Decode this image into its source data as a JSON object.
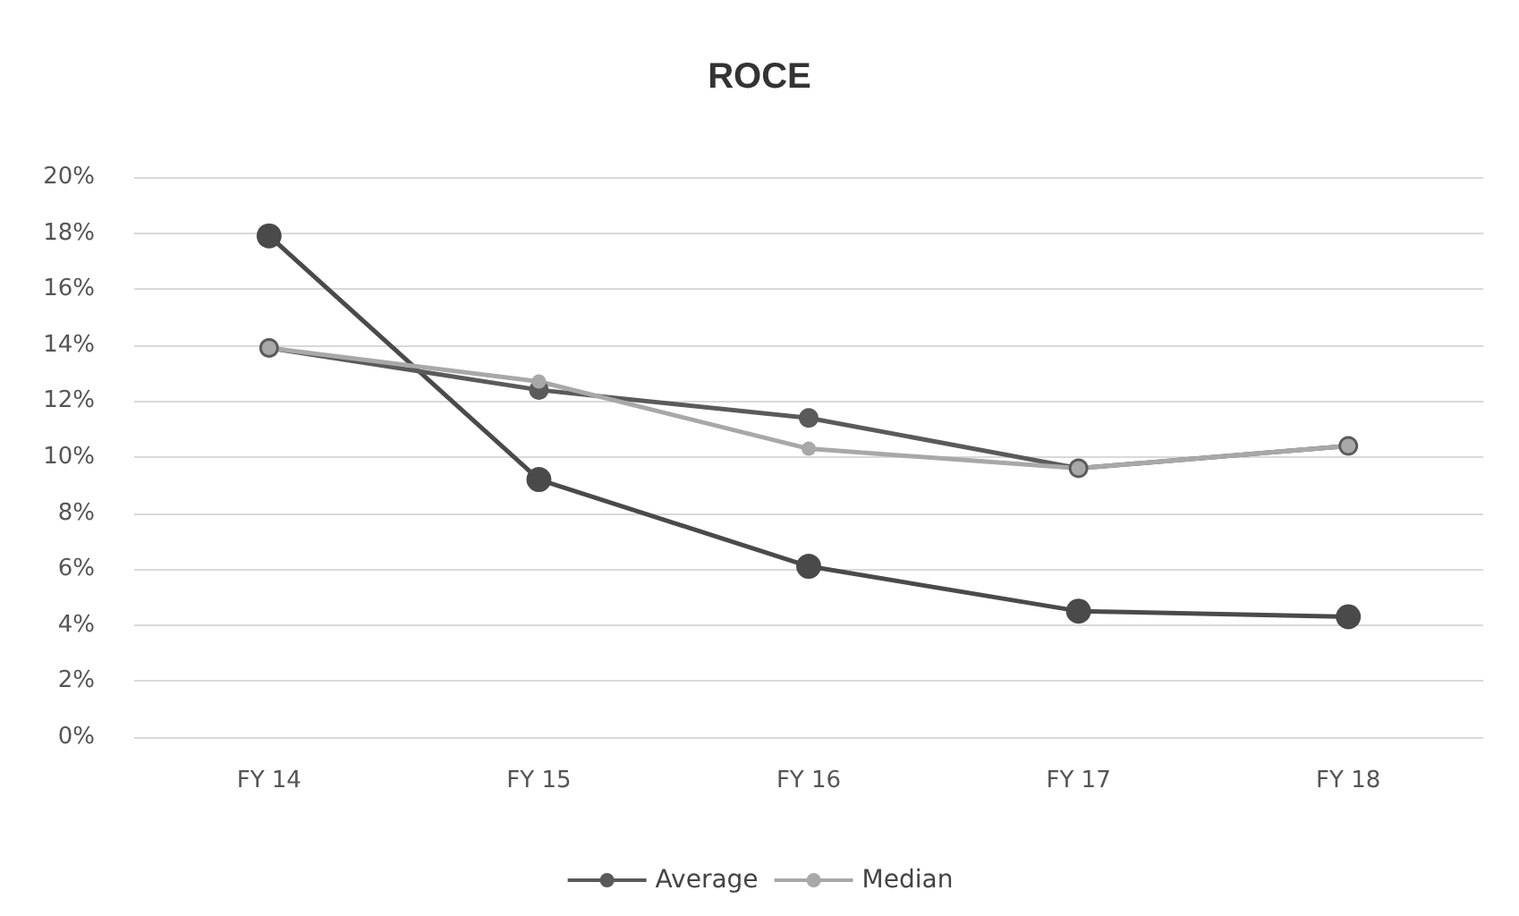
{
  "chart_data": {
    "type": "line",
    "title": "ROCE",
    "categories": [
      "FY 14",
      "FY 15",
      "FY 16",
      "FY 17",
      "FY 18"
    ],
    "series": [
      {
        "color": "#4a4a4a",
        "values": [
          17.9,
          9.2,
          6.1,
          4.5,
          4.3
        ]
      },
      {
        "name": "Average",
        "color": "#5a5a5a",
        "values": [
          13.9,
          12.4,
          11.4,
          9.6,
          10.4
        ]
      },
      {
        "name": "Median",
        "color": "#a8a8a8",
        "values": [
          13.9,
          12.7,
          10.3,
          9.6,
          10.4
        ]
      }
    ],
    "ylim": [
      0,
      20
    ],
    "yticks": [
      {
        "value": 0,
        "label": "0%"
      },
      {
        "value": 2,
        "label": "2%"
      },
      {
        "value": 4,
        "label": "4%"
      },
      {
        "value": 6,
        "label": "6%"
      },
      {
        "value": 8,
        "label": "8%"
      },
      {
        "value": 10,
        "label": "10%"
      },
      {
        "value": 12,
        "label": "12%"
      },
      {
        "value": 14,
        "label": "14%"
      },
      {
        "value": 16,
        "label": "16%"
      },
      {
        "value": 18,
        "label": "18%"
      },
      {
        "value": 20,
        "label": "20%"
      }
    ],
    "grid": "y",
    "legend": "bottom",
    "marker": "circle",
    "line_style": "solid"
  }
}
